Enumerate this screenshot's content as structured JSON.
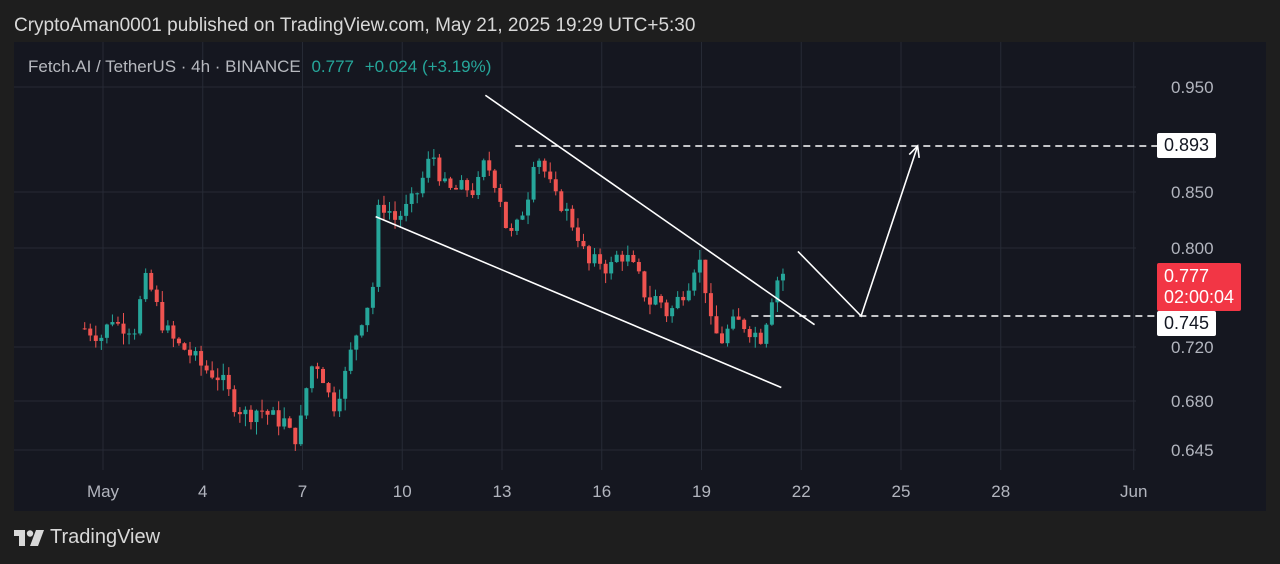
{
  "header": {
    "text": "CryptoAman0001 published on TradingView.com, May 21, 2025 19:29 UTC+5:30"
  },
  "symbol": {
    "name": "Fetch.AI / TetherUS · 4h · BINANCE",
    "price": "0.777",
    "change": "+0.024 (+3.19%)"
  },
  "price_tags": {
    "resistance": "0.893",
    "support": "0.745",
    "last_price": "0.777",
    "countdown": "02:00:04"
  },
  "footer": {
    "brand": "TradingView"
  },
  "colors": {
    "up": "#26a69a",
    "down": "#ef5350",
    "background": "#151720",
    "grid": "#262a35",
    "axis_text": "#b2b5be"
  },
  "chart_data": {
    "type": "candlestick",
    "title": "Fetch.AI / TetherUS · 4h · BINANCE",
    "y_ticks": [
      0.95,
      0.85,
      0.8,
      0.72,
      0.68,
      0.645
    ],
    "y_tick_labels": [
      "0.950",
      "0.850",
      "0.800",
      "0.720",
      "0.680",
      "0.645"
    ],
    "x_ticks": [
      {
        "label": "May",
        "day": 1
      },
      {
        "label": "4",
        "day": 4
      },
      {
        "label": "7",
        "day": 7
      },
      {
        "label": "10",
        "day": 10
      },
      {
        "label": "13",
        "day": 13
      },
      {
        "label": "16",
        "day": 16
      },
      {
        "label": "19",
        "day": 19
      },
      {
        "label": "22",
        "day": 22
      },
      {
        "label": "25",
        "day": 25
      },
      {
        "label": "28",
        "day": 28
      },
      {
        "label": "Jun",
        "day": 32
      }
    ],
    "grid": true,
    "legend": "none",
    "close_points": [
      [
        0.45,
        0.735
      ],
      [
        1.0,
        0.728
      ],
      [
        1.25,
        0.745
      ],
      [
        1.45,
        0.738
      ],
      [
        2.0,
        0.735
      ],
      [
        2.2,
        0.77
      ],
      [
        2.35,
        0.772
      ],
      [
        2.8,
        0.738
      ],
      [
        3.2,
        0.722
      ],
      [
        3.5,
        0.718
      ],
      [
        4.0,
        0.705
      ],
      [
        4.5,
        0.698
      ],
      [
        4.9,
        0.68
      ],
      [
        5.3,
        0.67
      ],
      [
        5.7,
        0.675
      ],
      [
        6.1,
        0.668
      ],
      [
        6.5,
        0.665
      ],
      [
        6.7,
        0.65
      ],
      [
        7.0,
        0.668
      ],
      [
        7.2,
        0.705
      ],
      [
        7.5,
        0.708
      ],
      [
        7.9,
        0.675
      ],
      [
        8.3,
        0.7
      ],
      [
        8.6,
        0.73
      ],
      [
        8.9,
        0.752
      ],
      [
        9.1,
        0.76
      ],
      [
        9.25,
        0.832
      ],
      [
        9.5,
        0.838
      ],
      [
        9.8,
        0.825
      ],
      [
        10.2,
        0.838
      ],
      [
        10.5,
        0.852
      ],
      [
        10.9,
        0.888
      ],
      [
        11.2,
        0.858
      ],
      [
        11.5,
        0.85
      ],
      [
        11.8,
        0.855
      ],
      [
        12.2,
        0.85
      ],
      [
        12.5,
        0.88
      ],
      [
        12.7,
        0.865
      ],
      [
        12.9,
        0.852
      ],
      [
        13.2,
        0.808
      ],
      [
        13.5,
        0.822
      ],
      [
        13.8,
        0.85
      ],
      [
        14.0,
        0.89
      ],
      [
        14.3,
        0.868
      ],
      [
        14.6,
        0.845
      ],
      [
        14.9,
        0.835
      ],
      [
        15.3,
        0.81
      ],
      [
        15.6,
        0.785
      ],
      [
        15.9,
        0.79
      ],
      [
        16.2,
        0.78
      ],
      [
        16.5,
        0.795
      ],
      [
        16.8,
        0.79
      ],
      [
        17.1,
        0.775
      ],
      [
        17.4,
        0.755
      ],
      [
        17.7,
        0.76
      ],
      [
        18.0,
        0.745
      ],
      [
        18.3,
        0.758
      ],
      [
        18.6,
        0.77
      ],
      [
        18.9,
        0.793
      ],
      [
        19.1,
        0.77
      ],
      [
        19.3,
        0.735
      ],
      [
        19.6,
        0.725
      ],
      [
        19.9,
        0.738
      ],
      [
        20.2,
        0.74
      ],
      [
        20.5,
        0.733
      ],
      [
        20.8,
        0.728
      ],
      [
        21.0,
        0.748
      ],
      [
        21.2,
        0.77
      ],
      [
        21.4,
        0.778
      ],
      [
        21.6,
        0.777
      ]
    ],
    "annotations": [
      {
        "type": "trendline",
        "label": "falling wedge upper",
        "points": [
          [
            12.5,
            0.942
          ],
          [
            22.4,
            0.738
          ]
        ]
      },
      {
        "type": "trendline",
        "label": "falling wedge lower",
        "points": [
          [
            9.2,
            0.828
          ],
          [
            21.4,
            0.69
          ]
        ]
      },
      {
        "type": "hline",
        "value": 0.893,
        "from_day": 13.4
      },
      {
        "type": "hline",
        "value": 0.745,
        "from_day": 20.5
      },
      {
        "type": "path",
        "label": "projected move",
        "points": [
          [
            21.9,
            0.797
          ],
          [
            23.8,
            0.745
          ],
          [
            25.5,
            0.893
          ]
        ]
      }
    ]
  }
}
